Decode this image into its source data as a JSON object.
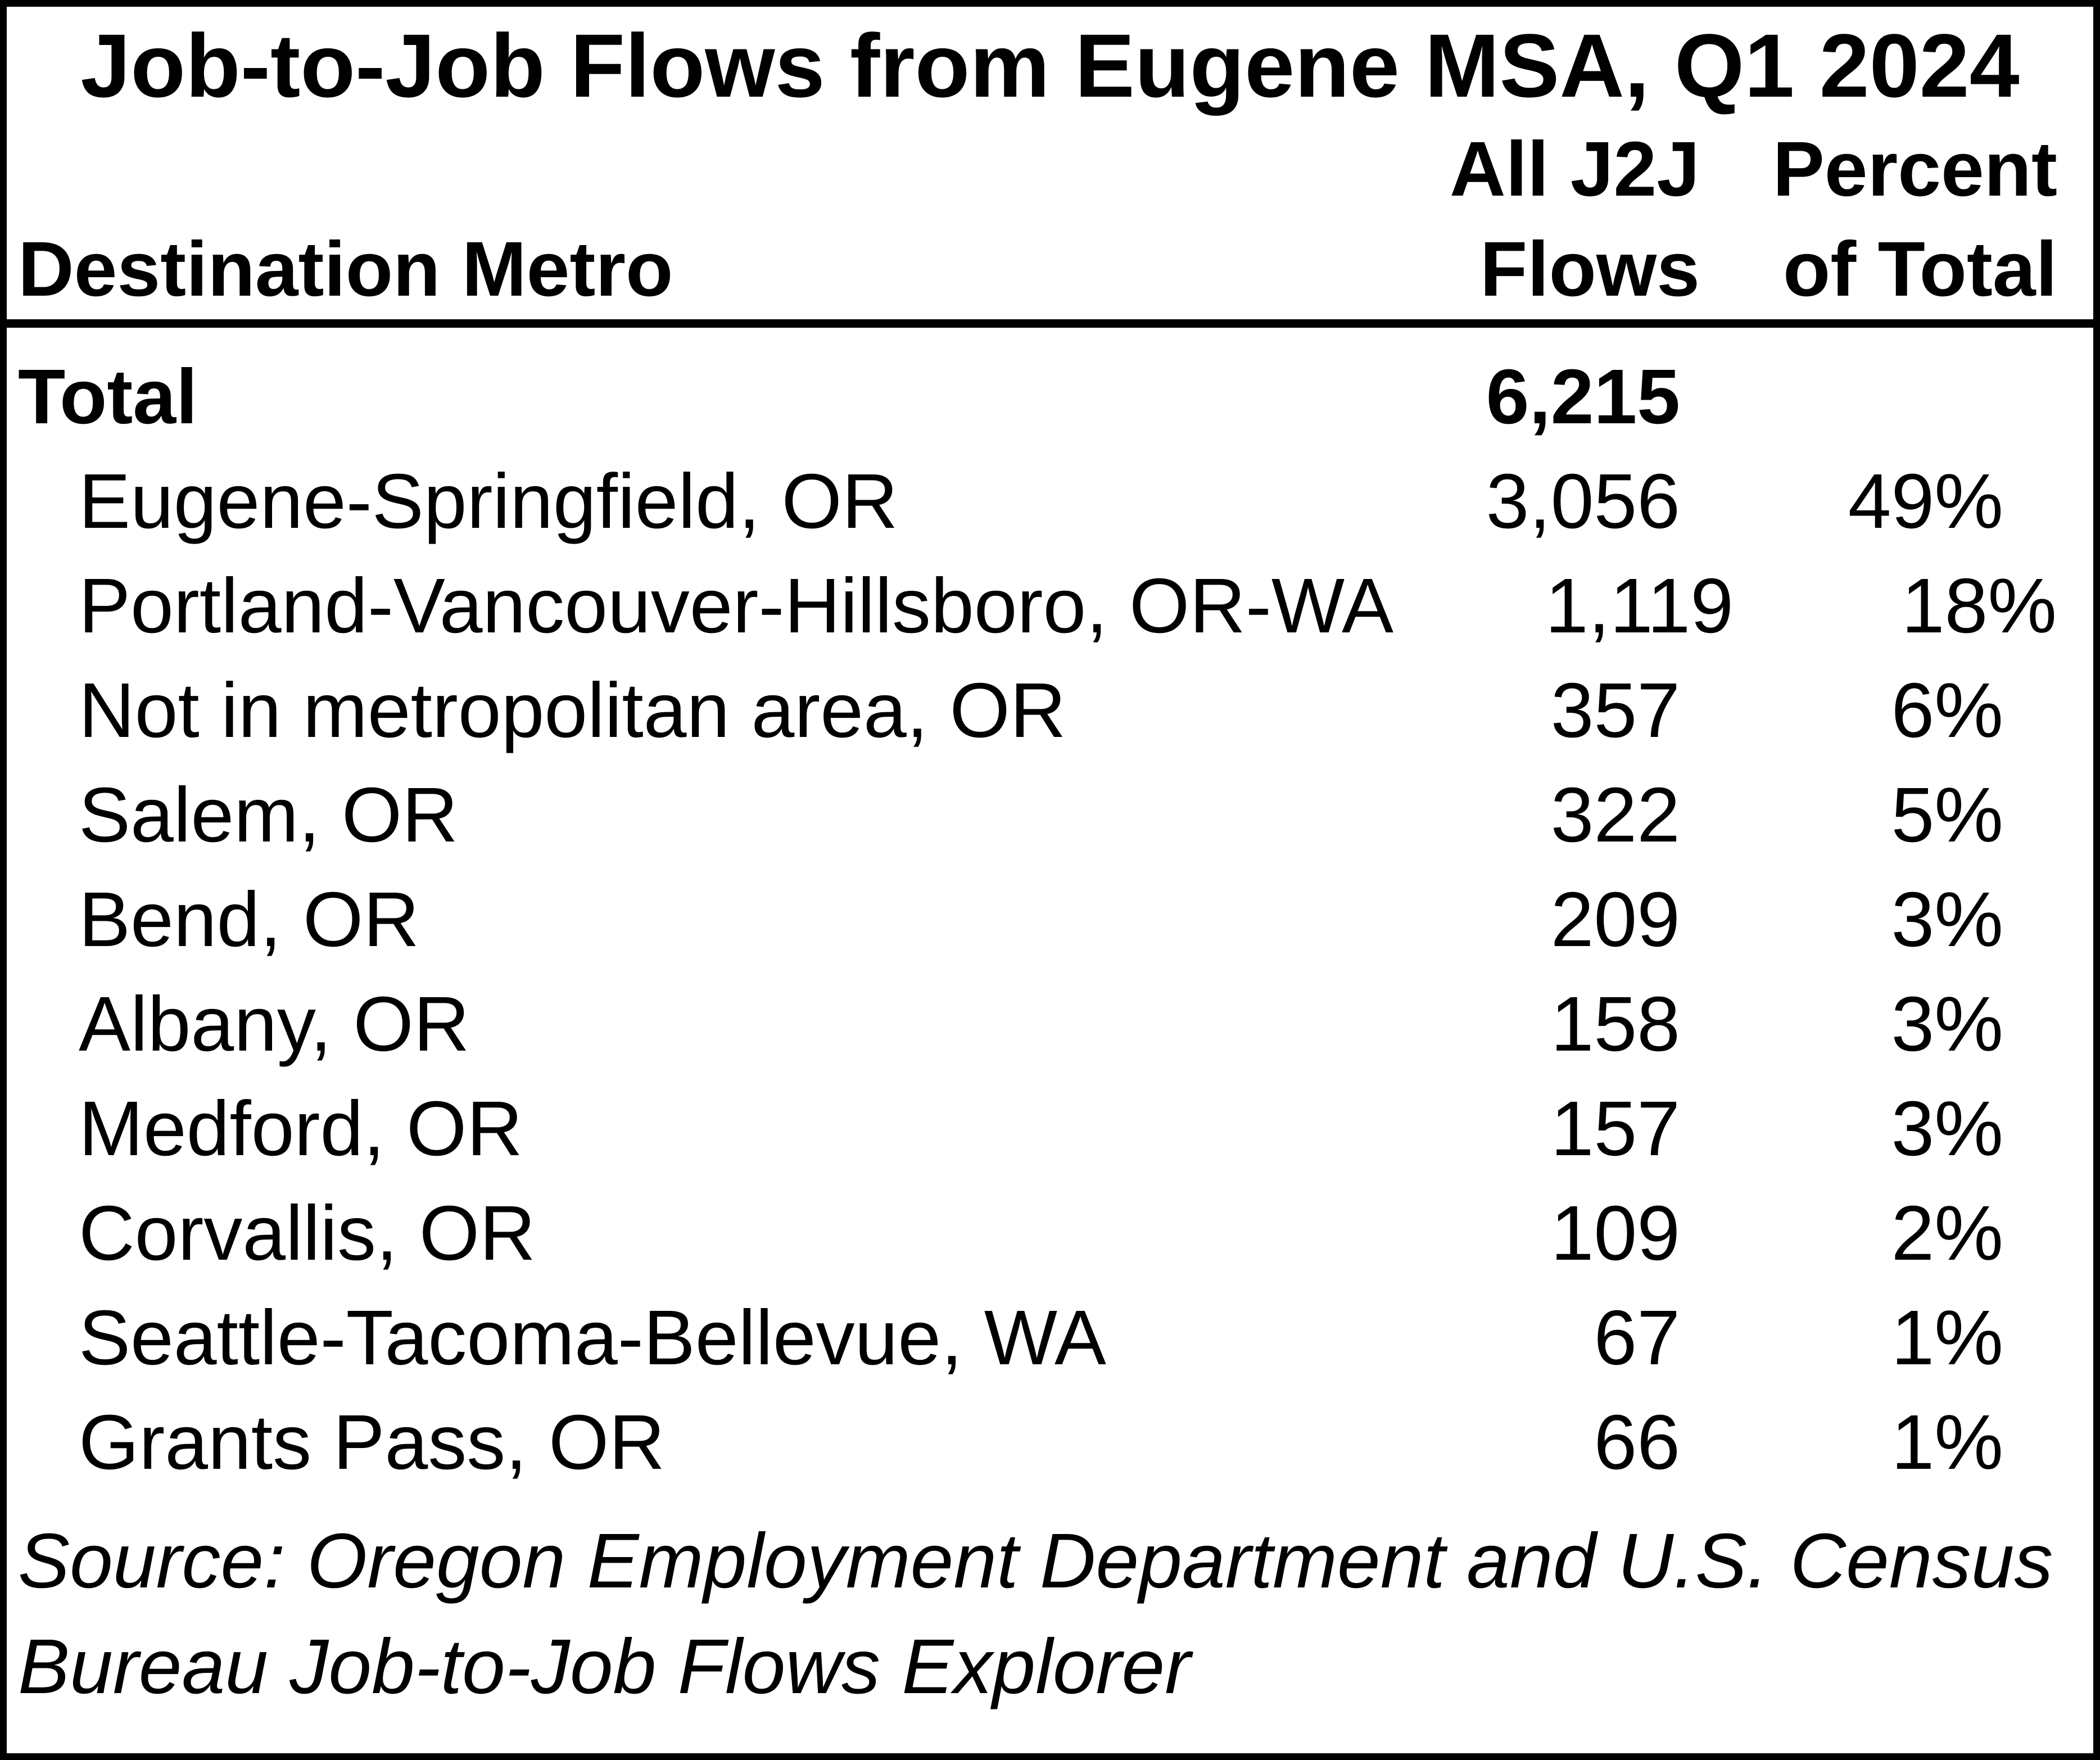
{
  "title": "Job-to-Job Flows from Eugene MSA, Q1 2024",
  "colors": {
    "text": "#000000",
    "background": "#ffffff",
    "border": "#000000"
  },
  "table": {
    "columns": {
      "metro": "Destination Metro",
      "flows_line1": "All J2J",
      "flows_line2": "Flows",
      "pct_line1": "Percent",
      "pct_line2": "of Total"
    },
    "rows": [
      {
        "metro": "Total",
        "flows": "6,215",
        "pct": ""
      },
      {
        "metro": "Eugene-Springfield, OR",
        "flows": "3,056",
        "pct": "49%"
      },
      {
        "metro": "Portland-Vancouver-Hillsboro, OR-WA",
        "flows": "1,119",
        "pct": "18%"
      },
      {
        "metro": "Not in metropolitan area, OR",
        "flows": "357",
        "pct": "6%"
      },
      {
        "metro": "Salem, OR",
        "flows": "322",
        "pct": "5%"
      },
      {
        "metro": "Bend, OR",
        "flows": "209",
        "pct": "3%"
      },
      {
        "metro": "Albany, OR",
        "flows": "158",
        "pct": "3%"
      },
      {
        "metro": "Medford, OR",
        "flows": "157",
        "pct": "3%"
      },
      {
        "metro": "Corvallis, OR",
        "flows": "109",
        "pct": "2%"
      },
      {
        "metro": "Seattle-Tacoma-Bellevue, WA",
        "flows": "67",
        "pct": "1%"
      },
      {
        "metro": "Grants Pass, OR",
        "flows": "66",
        "pct": "1%"
      }
    ]
  },
  "source": {
    "line1": "Source: Oregon Employment Department and U.S. Census",
    "line2": "Bureau Job-to-Job Flows Explorer"
  },
  "chart_data": {
    "type": "table",
    "title": "Job-to-Job Flows from Eugene MSA, Q1 2024",
    "columns": [
      "Destination Metro",
      "All J2J Flows",
      "Percent of Total"
    ],
    "total_flows": 6215,
    "categories": [
      "Eugene-Springfield, OR",
      "Portland-Vancouver-Hillsboro, OR-WA",
      "Not in metropolitan area, OR",
      "Salem, OR",
      "Bend, OR",
      "Albany, OR",
      "Medford, OR",
      "Corvallis, OR",
      "Seattle-Tacoma-Bellevue, WA",
      "Grants Pass, OR"
    ],
    "series": [
      {
        "name": "All J2J Flows",
        "values": [
          3056,
          1119,
          357,
          322,
          209,
          158,
          157,
          109,
          67,
          66
        ]
      },
      {
        "name": "Percent of Total",
        "values": [
          49,
          18,
          6,
          5,
          3,
          3,
          3,
          2,
          1,
          1
        ]
      }
    ],
    "source": "Source: Oregon Employment Department and U.S. Census Bureau Job-to-Job Flows Explorer"
  }
}
